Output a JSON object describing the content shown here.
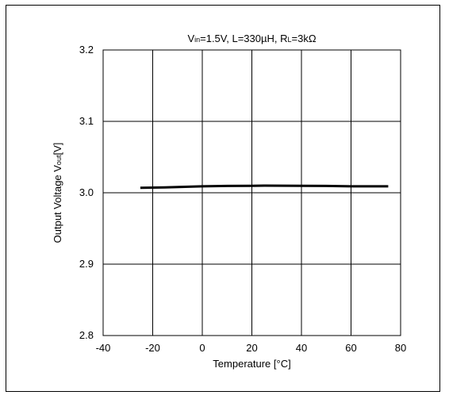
{
  "chart_data": {
    "type": "line",
    "title_parts": [
      {
        "text": "V",
        "sub": false
      },
      {
        "text": "in",
        "sub": true
      },
      {
        "text": "=1.5V, L=330µH, R",
        "sub": false
      },
      {
        "text": "L",
        "sub": true
      },
      {
        "text": "=3kΩ",
        "sub": false
      }
    ],
    "xlabel": "Temperature  [°C]",
    "ylabel_parts": [
      {
        "text": "Output Voltage  V",
        "sub": false
      },
      {
        "text": "out",
        "sub": true
      },
      {
        "text": "[V]",
        "sub": false
      }
    ],
    "xlim": [
      -40,
      80
    ],
    "ylim": [
      2.8,
      3.2
    ],
    "xticks": [
      -40,
      -20,
      0,
      20,
      40,
      60,
      80
    ],
    "xtick_labels": [
      "-40",
      "-20",
      "0",
      "20",
      "40",
      "60",
      "80"
    ],
    "yticks": [
      2.8,
      2.9,
      3.0,
      3.1,
      3.2
    ],
    "ytick_labels": [
      "2.8",
      "2.9",
      "3.0",
      "3.1",
      "3.2"
    ],
    "grid": true,
    "series": [
      {
        "x": [
          -25,
          -15,
          0,
          10,
          20,
          25,
          40,
          50,
          60,
          75
        ],
        "y": [
          3.007,
          3.0075,
          3.009,
          3.0095,
          3.0098,
          3.01,
          3.0098,
          3.0095,
          3.009,
          3.009
        ],
        "color": "#000000"
      }
    ]
  }
}
